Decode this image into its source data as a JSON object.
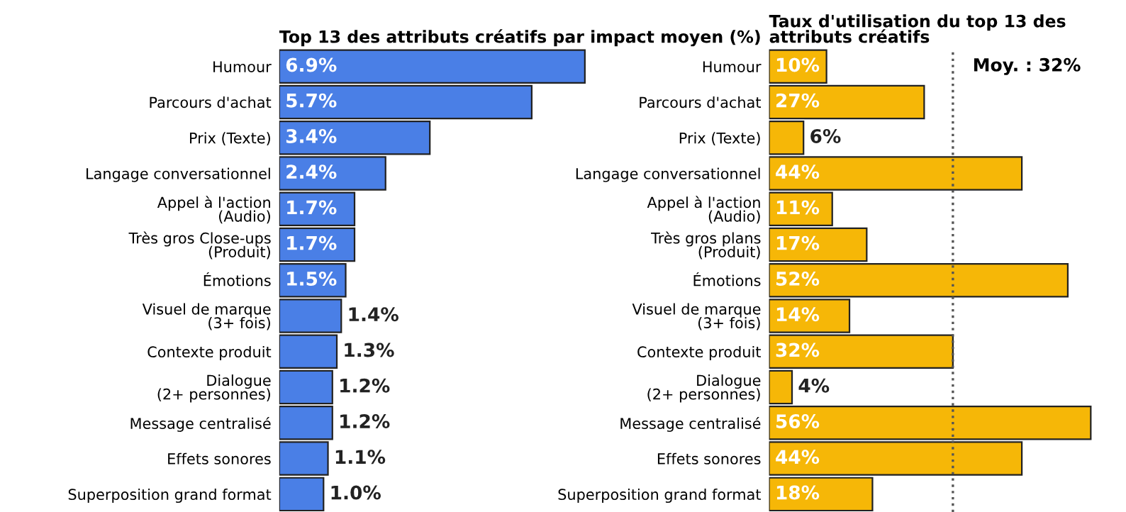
{
  "chart_data": [
    {
      "type": "bar",
      "orientation": "horizontal",
      "title": "Top 13 des attributs créatifs par impact moyen (%)",
      "categories": [
        "Humour",
        "Parcours d'achat",
        "Prix (Texte)",
        "Langage conversationnel",
        "Appel à l'action\n(Audio)",
        "Très gros Close-ups\n(Produit)",
        "Émotions",
        "Visuel de marque\n(3+ fois)",
        "Contexte produit",
        "Dialogue\n(2+ personnes)",
        "Message centralisé",
        "Effets sonores",
        "Superposition grand format"
      ],
      "series": [
        {
          "color": "#4a7fe6",
          "values": [
            6.9,
            5.7,
            3.4,
            2.4,
            1.7,
            1.7,
            1.5,
            1.4,
            1.3,
            1.2,
            1.2,
            1.1,
            1.0
          ],
          "value_labels": [
            "6.9%",
            "5.7%",
            "3.4%",
            "2.4%",
            "1.7%",
            "1.7%",
            "1.5%",
            "1.4%",
            "1.3%",
            "1.2%",
            "1.2%",
            "1.1%",
            "1.0%"
          ]
        }
      ],
      "tick_labels": "y",
      "grid": false,
      "legend": false
    },
    {
      "type": "bar",
      "orientation": "horizontal",
      "title": "Taux d'utilisation du top 13 des\nattributs créatifs",
      "categories": [
        "Humour",
        "Parcours d'achat",
        "Prix (Texte)",
        "Langage conversationnel",
        "Appel à l'action\n(Audio)",
        "Très gros plans\n(Produit)",
        "Émotions",
        "Visuel de marque\n(3+ fois)",
        "Contexte produit",
        "Dialogue\n(2+ personnes)",
        "Message centralisé",
        "Effets sonores",
        "Superposition grand format"
      ],
      "series": [
        {
          "color": "#f6b707",
          "values": [
            10,
            27,
            6,
            44,
            11,
            17,
            52,
            14,
            32,
            4,
            56,
            44,
            18
          ],
          "value_labels": [
            "10%",
            "27%",
            "6%",
            "44%",
            "11%",
            "17%",
            "52%",
            "14%",
            "32%",
            "4%",
            "56%",
            "44%",
            "18%"
          ]
        }
      ],
      "ref_lines": [
        {
          "axis": "x",
          "value": 32,
          "label": "Moy. : 32%",
          "color": "#555555",
          "line_style": "dotted"
        }
      ],
      "tick_labels": "y",
      "grid": false,
      "legend": false
    }
  ]
}
